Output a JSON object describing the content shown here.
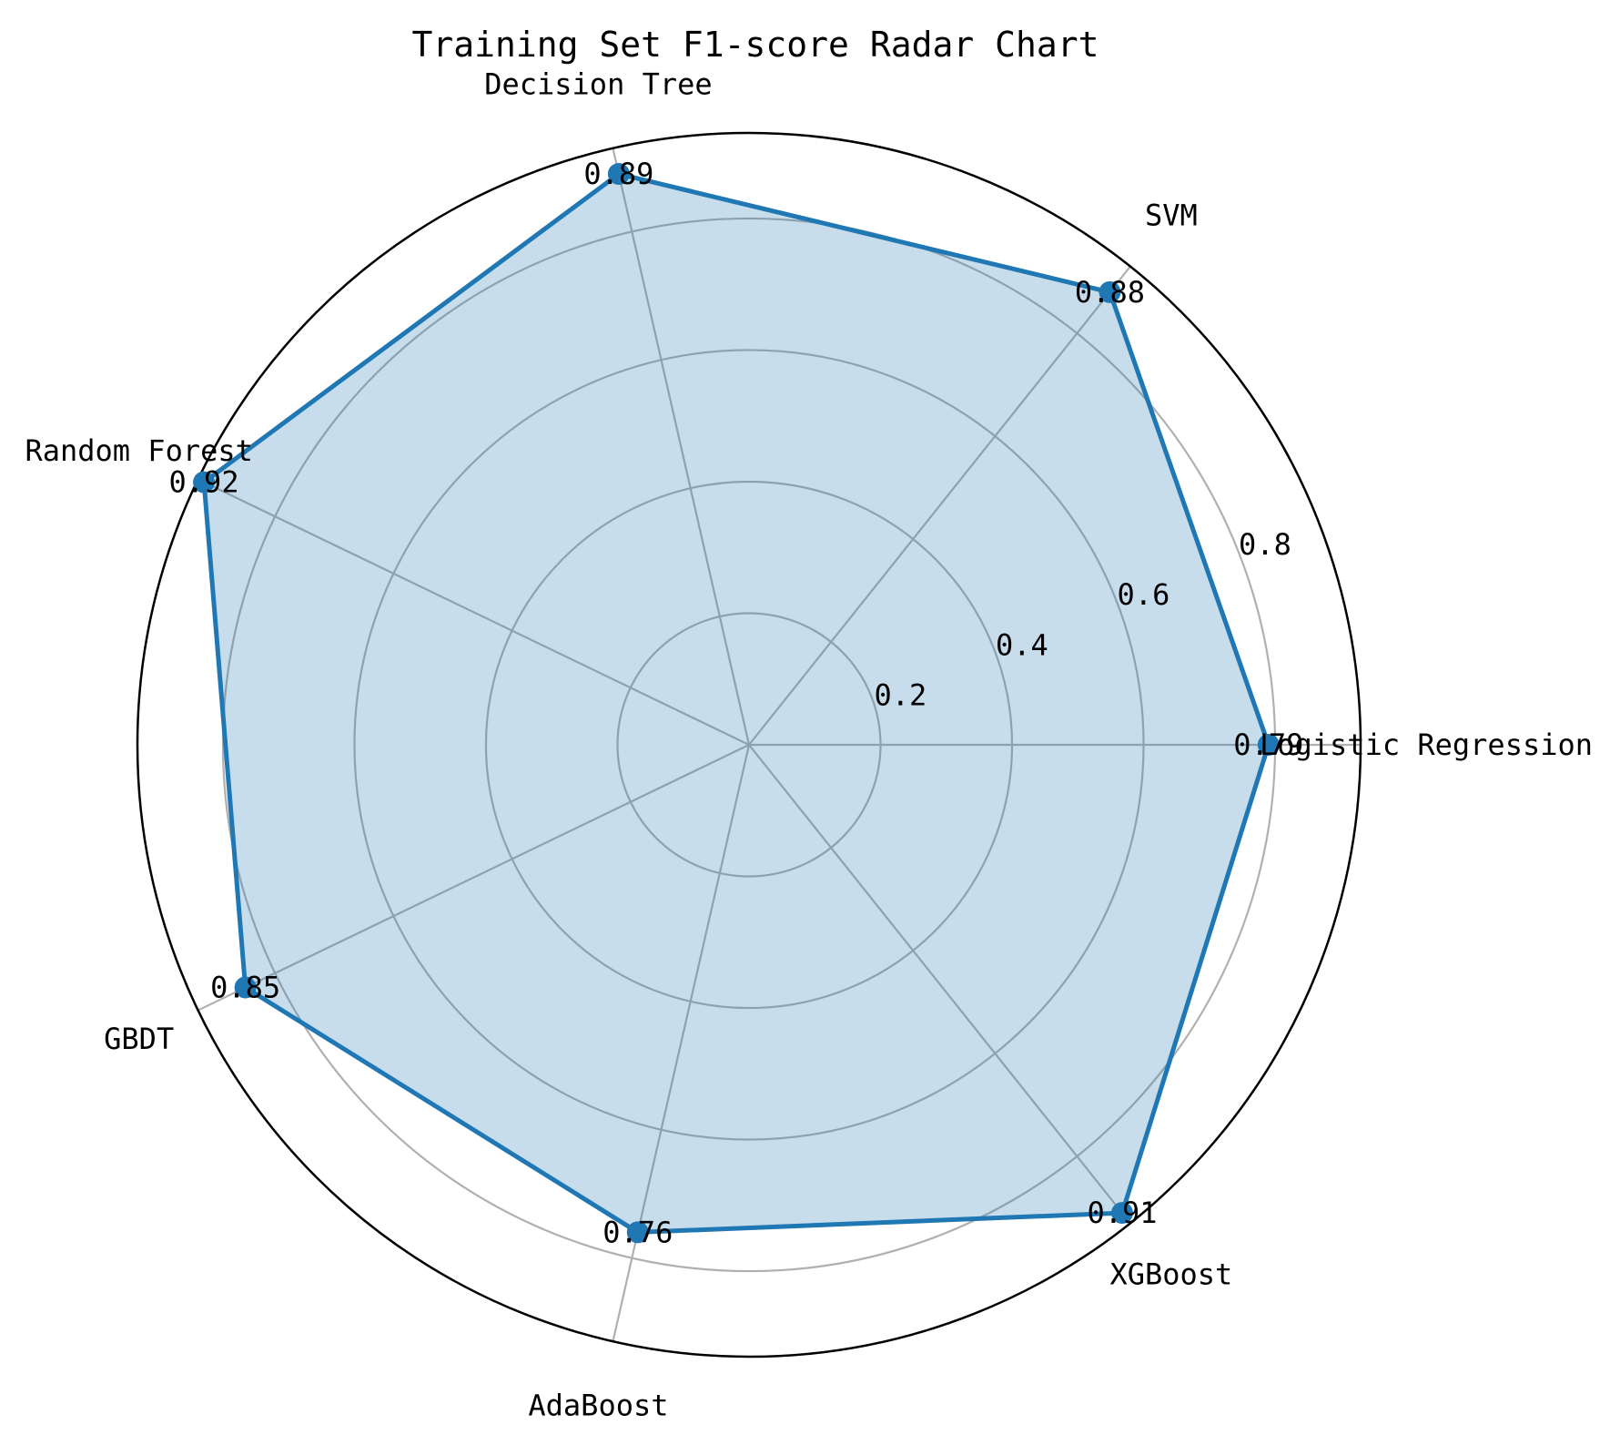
{
  "chart_data": {
    "type": "radar",
    "title": "Training Set F1-score Radar Chart",
    "categories": [
      "Logistic Regression",
      "SVM",
      "Decision Tree",
      "Random Forest",
      "GBDT",
      "AdaBoost",
      "XGBoost"
    ],
    "values": [
      0.79,
      0.88,
      0.89,
      0.92,
      0.85,
      0.76,
      0.91
    ],
    "value_labels": [
      "0.79",
      "0.88",
      "0.89",
      "0.92",
      "0.85",
      "0.76",
      "0.91"
    ],
    "rlim": [
      0,
      0.93
    ],
    "r_ticks": [
      0.2,
      0.4,
      0.6,
      0.8
    ],
    "r_tick_labels": [
      "0.2",
      "0.4",
      "0.6",
      "0.8"
    ],
    "grid": true,
    "colors": {
      "line": "#1f77b4",
      "fill": "#1f77b4",
      "grid": "#b0b0b0",
      "frame": "#000000"
    }
  }
}
